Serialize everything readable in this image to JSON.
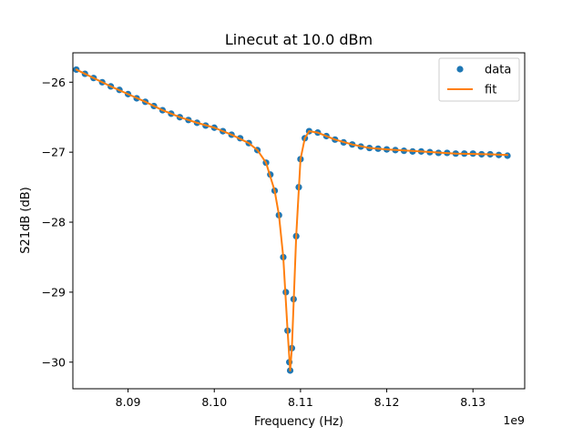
{
  "chart_data": {
    "type": "scatter",
    "title": "Linecut at 10.0 dBm",
    "xlabel": "Frequency (Hz)",
    "ylabel": "S21dB (dB)",
    "x_offset_label": "1e9",
    "x_unit_scale": 1000000000,
    "xlim": [
      8.0836,
      8.136
    ],
    "ylim": [
      -30.38,
      -25.58
    ],
    "x_ticks": [
      8.09,
      8.1,
      8.11,
      8.12,
      8.13
    ],
    "x_tick_labels": [
      "8.09",
      "8.10",
      "8.11",
      "8.12",
      "8.13"
    ],
    "y_ticks": [
      -26,
      -27,
      -28,
      -29,
      -30
    ],
    "y_tick_labels": [
      "−26",
      "−27",
      "−28",
      "−29",
      "−30"
    ],
    "grid": false,
    "legend_position": "top-right",
    "series": [
      {
        "name": "data",
        "style": "markers",
        "color": "#1f77b4",
        "points": [
          [
            8.084,
            -25.82
          ],
          [
            8.085,
            -25.88
          ],
          [
            8.086,
            -25.94
          ],
          [
            8.087,
            -26.0
          ],
          [
            8.088,
            -26.06
          ],
          [
            8.089,
            -26.11
          ],
          [
            8.09,
            -26.17
          ],
          [
            8.091,
            -26.23
          ],
          [
            8.092,
            -26.28
          ],
          [
            8.093,
            -26.34
          ],
          [
            8.094,
            -26.4
          ],
          [
            8.095,
            -26.45
          ],
          [
            8.096,
            -26.5
          ],
          [
            8.097,
            -26.54
          ],
          [
            8.098,
            -26.58
          ],
          [
            8.099,
            -26.62
          ],
          [
            8.1,
            -26.65
          ],
          [
            8.101,
            -26.7
          ],
          [
            8.102,
            -26.75
          ],
          [
            8.103,
            -26.8
          ],
          [
            8.104,
            -26.87
          ],
          [
            8.105,
            -26.97
          ],
          [
            8.106,
            -27.15
          ],
          [
            8.1065,
            -27.32
          ],
          [
            8.107,
            -27.55
          ],
          [
            8.1075,
            -27.9
          ],
          [
            8.108,
            -28.5
          ],
          [
            8.1083,
            -29.0
          ],
          [
            8.1085,
            -29.55
          ],
          [
            8.1087,
            -30.0
          ],
          [
            8.1088,
            -30.12
          ],
          [
            8.109,
            -29.8
          ],
          [
            8.1092,
            -29.1
          ],
          [
            8.1095,
            -28.2
          ],
          [
            8.1098,
            -27.5
          ],
          [
            8.11,
            -27.1
          ],
          [
            8.1105,
            -26.8
          ],
          [
            8.111,
            -26.7
          ],
          [
            8.112,
            -26.72
          ],
          [
            8.113,
            -26.77
          ],
          [
            8.114,
            -26.82
          ],
          [
            8.115,
            -26.86
          ],
          [
            8.116,
            -26.89
          ],
          [
            8.117,
            -26.92
          ],
          [
            8.118,
            -26.94
          ],
          [
            8.119,
            -26.95
          ],
          [
            8.12,
            -26.96
          ],
          [
            8.121,
            -26.97
          ],
          [
            8.122,
            -26.98
          ],
          [
            8.123,
            -26.99
          ],
          [
            8.124,
            -26.99
          ],
          [
            8.125,
            -27.0
          ],
          [
            8.126,
            -27.01
          ],
          [
            8.127,
            -27.01
          ],
          [
            8.128,
            -27.02
          ],
          [
            8.129,
            -27.02
          ],
          [
            8.13,
            -27.02
          ],
          [
            8.131,
            -27.03
          ],
          [
            8.132,
            -27.03
          ],
          [
            8.133,
            -27.04
          ],
          [
            8.134,
            -27.05
          ]
        ]
      },
      {
        "name": "fit",
        "style": "line",
        "color": "#ff7f0e",
        "points": [
          [
            8.084,
            -25.82
          ],
          [
            8.086,
            -25.94
          ],
          [
            8.088,
            -26.06
          ],
          [
            8.09,
            -26.17
          ],
          [
            8.092,
            -26.28
          ],
          [
            8.094,
            -26.4
          ],
          [
            8.096,
            -26.5
          ],
          [
            8.098,
            -26.58
          ],
          [
            8.1,
            -26.65
          ],
          [
            8.102,
            -26.75
          ],
          [
            8.104,
            -26.87
          ],
          [
            8.105,
            -26.97
          ],
          [
            8.106,
            -27.15
          ],
          [
            8.107,
            -27.55
          ],
          [
            8.1075,
            -27.9
          ],
          [
            8.108,
            -28.5
          ],
          [
            8.1085,
            -29.55
          ],
          [
            8.1088,
            -30.12
          ],
          [
            8.109,
            -29.8
          ],
          [
            8.1095,
            -28.2
          ],
          [
            8.11,
            -27.1
          ],
          [
            8.1105,
            -26.8
          ],
          [
            8.111,
            -26.7
          ],
          [
            8.112,
            -26.72
          ],
          [
            8.114,
            -26.82
          ],
          [
            8.116,
            -26.89
          ],
          [
            8.118,
            -26.94
          ],
          [
            8.12,
            -26.96
          ],
          [
            8.124,
            -26.99
          ],
          [
            8.128,
            -27.02
          ],
          [
            8.132,
            -27.03
          ],
          [
            8.134,
            -27.04
          ]
        ]
      }
    ]
  }
}
